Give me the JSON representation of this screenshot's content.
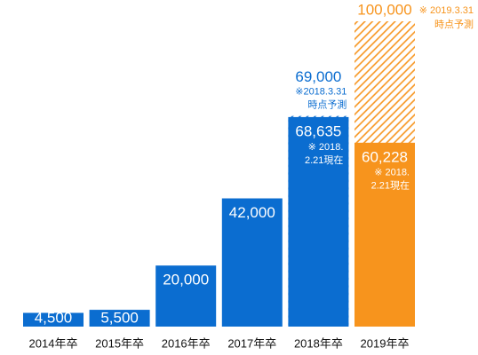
{
  "chart_data": {
    "type": "bar",
    "categories": [
      "2014年卒",
      "2015年卒",
      "2016年卒",
      "2017年卒",
      "2018年卒",
      "2019年卒"
    ],
    "series": [
      {
        "colors": [
          "#0b6dd0",
          "#0b6dd0",
          "#0b6dd0",
          "#0b6dd0",
          "#0b6dd0",
          "#f7941d"
        ],
        "values": [
          4500,
          5500,
          20000,
          42000,
          68635,
          60228
        ],
        "value_labels": [
          "4,500",
          "5,500",
          "20,000",
          "42,000",
          "68,635",
          "60,228"
        ],
        "notes": [
          null,
          null,
          null,
          null,
          [
            "※ 2018.",
            "2.21現在"
          ],
          [
            "※ 2018.",
            "2.21現在"
          ]
        ]
      },
      {
        "colors": [
          "#0b6dd0",
          "#0b6dd0",
          "#0b6dd0",
          "#0b6dd0",
          "#0b6dd0",
          "#f7941d"
        ],
        "hatched": true,
        "values": [
          null,
          null,
          null,
          null,
          69000,
          100000
        ],
        "value_labels": [
          null,
          null,
          null,
          null,
          "69,000",
          "100,000"
        ],
        "notes": [
          null,
          null,
          null,
          null,
          [
            "※2018.3.31",
            "時点予測"
          ],
          [
            "※ 2019.3.31",
            "時点予測"
          ]
        ]
      }
    ]
  }
}
